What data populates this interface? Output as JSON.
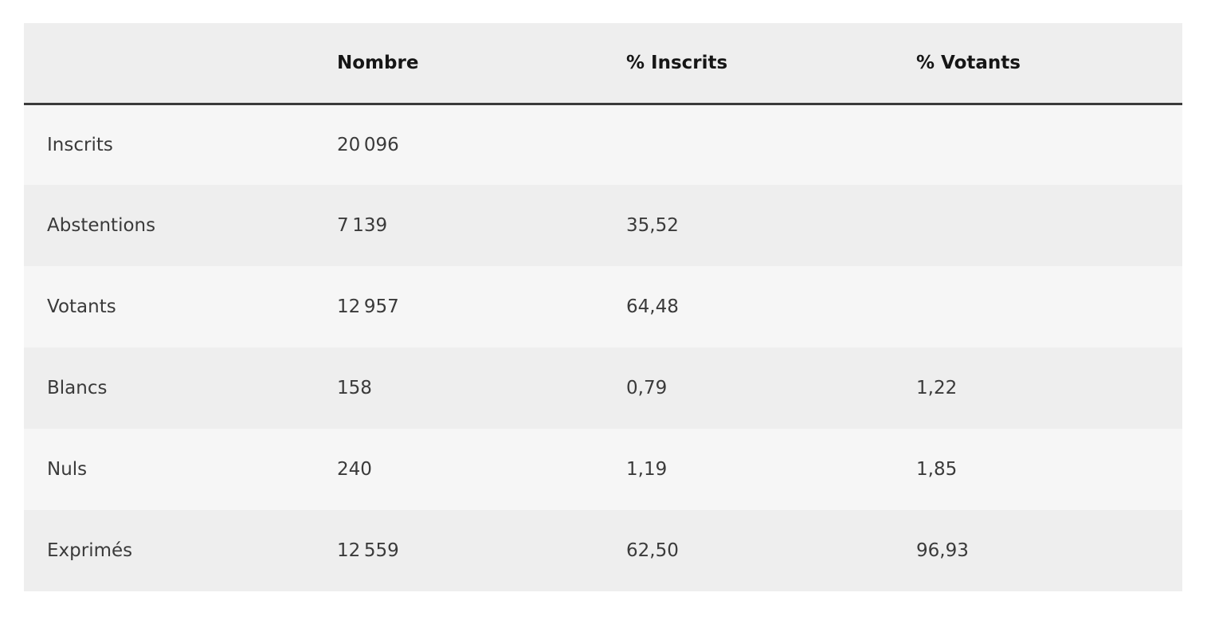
{
  "table": {
    "header": [
      "Nombre",
      "% Inscrits",
      "% Votants"
    ],
    "rows": [
      [
        "Inscrits",
        "20 096"
      ],
      [
        "Abstentions",
        "7 139",
        "35,52"
      ],
      [
        "Votants",
        "12 957",
        "64,48"
      ],
      [
        "Blancs",
        "158",
        "0,79",
        "1,22"
      ],
      [
        "Nuls",
        "240",
        "1,19",
        "1,85"
      ],
      [
        "Exprimés",
        "12 559",
        "62,50",
        "96,93"
      ]
    ]
  }
}
